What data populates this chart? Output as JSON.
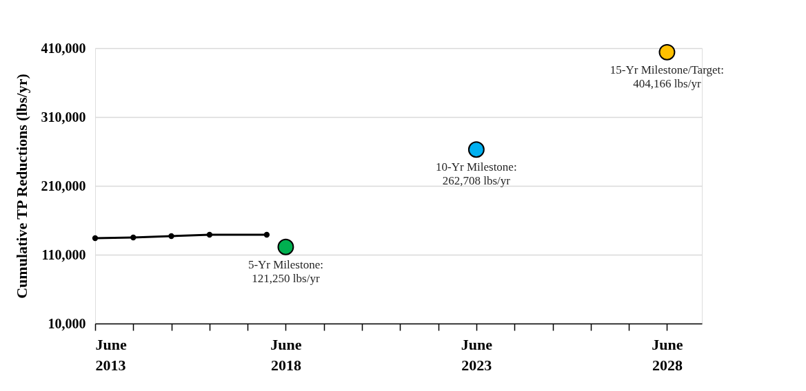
{
  "chart_data": {
    "type": "line",
    "ylabel": "Cumulative TP Reductions (lbs/yr)",
    "ylim": [
      10000,
      410000
    ],
    "yticks": [
      {
        "value": 10000,
        "label": "10,000"
      },
      {
        "value": 110000,
        "label": "110,000"
      },
      {
        "value": 210000,
        "label": "210,000"
      },
      {
        "value": 310000,
        "label": "310,000"
      },
      {
        "value": 410000,
        "label": "410,000"
      }
    ],
    "xlim": [
      "2013-06",
      "2029-05"
    ],
    "xticks": [
      {
        "value": "2013-06",
        "label": "June\n2013"
      },
      {
        "value": "2014-06",
        "label": null
      },
      {
        "value": "2015-06",
        "label": null
      },
      {
        "value": "2016-06",
        "label": null
      },
      {
        "value": "2017-06",
        "label": null
      },
      {
        "value": "2018-06",
        "label": "June\n2018"
      },
      {
        "value": "2019-06",
        "label": null
      },
      {
        "value": "2020-06",
        "label": null
      },
      {
        "value": "2021-06",
        "label": null
      },
      {
        "value": "2022-06",
        "label": null
      },
      {
        "value": "2023-06",
        "label": "June\n2023"
      },
      {
        "value": "2024-06",
        "label": null
      },
      {
        "value": "2025-06",
        "label": null
      },
      {
        "value": "2026-06",
        "label": null
      },
      {
        "value": "2027-06",
        "label": null
      },
      {
        "value": "2028-06",
        "label": "June\n2028"
      }
    ],
    "grid": "y",
    "series": [
      {
        "color": "#000000",
        "marker": "circle",
        "x": [
          "2013-06",
          "2014-06",
          "2015-06",
          "2016-06",
          "2017-12"
        ],
        "values": [
          134000,
          135000,
          137000,
          139000,
          139000
        ]
      },
      {
        "type": "scatter",
        "marker": "circle",
        "x": [
          "2018-06",
          "2023-06",
          "2028-06"
        ],
        "values": [
          121250,
          262708,
          404166
        ],
        "colors": [
          "#00b050",
          "#00b0f0",
          "#ffc000"
        ]
      }
    ],
    "annotations": [
      {
        "text": "5-Yr Milestone:\n121,250 lbs/yr",
        "x": "2018-06",
        "y": 121250
      },
      {
        "text": "10-Yr Milestone:\n262,708 lbs/yr",
        "x": "2023-06",
        "y": 262708
      },
      {
        "text": "15-Yr Milestone/Target:\n404,166 lbs/yr",
        "x": "2028-06",
        "y": 404166
      }
    ]
  }
}
